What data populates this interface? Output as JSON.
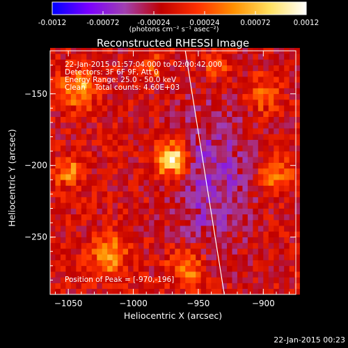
{
  "colorbar": {
    "ticks": [
      "-0.0012",
      "-0.00072",
      "-0.00024",
      "0.00024",
      "0.00072",
      "0.0012"
    ],
    "units_label": "(photons cm⁻² s⁻¹ asec⁻²)"
  },
  "chart_data": {
    "type": "heatmap",
    "title": "Reconstructed RHESSI Image",
    "xlabel": "Heliocentric X (arcsec)",
    "ylabel": "Heliocentric Y (arcsec)",
    "xlim": [
      -1064,
      -875
    ],
    "ylim": [
      -290,
      -120
    ],
    "xticks": [
      -1050,
      -1000,
      -950,
      -900
    ],
    "yticks": [
      -150,
      -200,
      -250
    ],
    "xtick_labels": [
      "−1050",
      "−1000",
      "−950",
      "−900"
    ],
    "ytick_labels": [
      "−150",
      "−200",
      "−250"
    ],
    "value_range": [
      -0.0012,
      0.0012
    ],
    "colormap": [
      "#0000ff",
      "#7a00ff",
      "#a040b0",
      "#c00000",
      "#ff3000",
      "#ff9000",
      "#ffe060",
      "#ffffff"
    ],
    "peak": {
      "x": -970,
      "y": -196
    },
    "limb_line": {
      "x_top": -960,
      "x_bottom": -930
    },
    "sources": [
      {
        "x": -970,
        "y": -196,
        "amp": 1.0,
        "r": 12
      },
      {
        "x": -1042,
        "y": -145,
        "amp": 0.55,
        "r": 14
      },
      {
        "x": -1050,
        "y": -205,
        "amp": 0.5,
        "r": 10
      },
      {
        "x": -1018,
        "y": -262,
        "amp": 0.55,
        "r": 14
      },
      {
        "x": -958,
        "y": -272,
        "amp": 0.5,
        "r": 14
      },
      {
        "x": -890,
        "y": -205,
        "amp": 0.5,
        "r": 12
      },
      {
        "x": -900,
        "y": -150,
        "amp": 0.45,
        "r": 12
      },
      {
        "x": -985,
        "y": -130,
        "amp": 0.35,
        "r": 10
      },
      {
        "x": -935,
        "y": -130,
        "amp": 0.35,
        "r": 10
      }
    ]
  },
  "info": {
    "time_range": "22-Jan-2015 01:57:04.000 to 02:00:42.000",
    "detectors": "Detectors: 3F 6F 9F, Att 0",
    "energy": "Energy Range: 25.0 - 50.0 keV",
    "clean": "Clean    Total counts: 4.60E+03",
    "peak_label": "Position of Peak = [-970,-196]"
  },
  "footer": {
    "timestamp": "22-Jan-2015 00:23"
  }
}
